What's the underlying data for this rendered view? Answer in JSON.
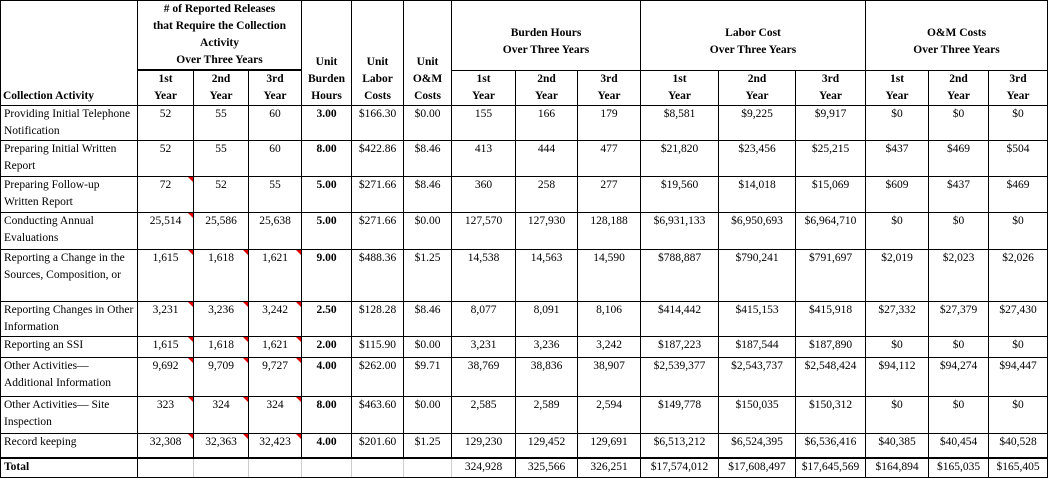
{
  "header": {
    "activity": "Collection Activity",
    "releases_group": "# of Reported Releases that Require the Collection Activity Over Three Years",
    "releases_group_lines": [
      "# of Reported Releases",
      "that Require the Collection",
      "Activity",
      "Over Three Years"
    ],
    "unit_burden": [
      "Unit",
      "Burden",
      "Hours"
    ],
    "unit_labor": [
      "Unit",
      "Labor",
      "Costs"
    ],
    "unit_om": [
      "Unit",
      "O&M",
      "Costs"
    ],
    "burden_group": [
      "Burden Hours",
      "Over Three Years"
    ],
    "labor_group": [
      "Labor Cost",
      "Over Three Years"
    ],
    "om_group": [
      "O&M Costs",
      "Over Three Years"
    ],
    "years": [
      [
        "1st",
        "Year"
      ],
      [
        "2nd",
        "Year"
      ],
      [
        "3rd",
        "Year"
      ]
    ]
  },
  "rows": [
    {
      "activity": "Providing Initial Telephone Notification",
      "releases": [
        "52",
        "55",
        "60"
      ],
      "flags": [
        0,
        0,
        0
      ],
      "unit_burden": "3.00",
      "unit_labor": "$166.30",
      "unit_om": "$0.00",
      "burden": [
        "155",
        "166",
        "179"
      ],
      "labor": [
        "$8,581",
        "$9,225",
        "$9,917"
      ],
      "om": [
        "$0",
        "$0",
        "$0"
      ]
    },
    {
      "activity": "Preparing Initial Written Report",
      "releases": [
        "52",
        "55",
        "60"
      ],
      "flags": [
        0,
        0,
        0
      ],
      "unit_burden": "8.00",
      "unit_labor": "$422.86",
      "unit_om": "$8.46",
      "burden": [
        "413",
        "444",
        "477"
      ],
      "labor": [
        "$21,820",
        "$23,456",
        "$25,215"
      ],
      "om": [
        "$437",
        "$469",
        "$504"
      ]
    },
    {
      "activity": "Preparing Follow-up Written Report",
      "releases": [
        "72",
        "52",
        "55"
      ],
      "flags": [
        1,
        0,
        0
      ],
      "unit_burden": "5.00",
      "unit_labor": "$271.66",
      "unit_om": "$8.46",
      "burden": [
        "360",
        "258",
        "277"
      ],
      "labor": [
        "$19,560",
        "$14,018",
        "$15,069"
      ],
      "om": [
        "$609",
        "$437",
        "$469"
      ]
    },
    {
      "activity": "Conducting Annual Evaluations",
      "releases": [
        "25,514",
        "25,586",
        "25,638"
      ],
      "flags": [
        1,
        0,
        0
      ],
      "unit_burden": "5.00",
      "unit_labor": "$271.66",
      "unit_om": "$0.00",
      "burden": [
        "127,570",
        "127,930",
        "128,188"
      ],
      "labor": [
        "$6,931,133",
        "$6,950,693",
        "$6,964,710"
      ],
      "om": [
        "$0",
        "$0",
        "$0"
      ]
    },
    {
      "activity": "Reporting a Change in the Sources, Composition, or",
      "releases": [
        "1,615",
        "1,618",
        "1,621"
      ],
      "flags": [
        1,
        1,
        1
      ],
      "unit_burden": "9.00",
      "unit_labor": "$488.36",
      "unit_om": "$1.25",
      "burden": [
        "14,538",
        "14,563",
        "14,590"
      ],
      "labor": [
        "$788,887",
        "$790,241",
        "$791,697"
      ],
      "om": [
        "$2,019",
        "$2,023",
        "$2,026"
      ]
    },
    {
      "activity": "Reporting Changes in Other Information",
      "releases": [
        "3,231",
        "3,236",
        "3,242"
      ],
      "flags": [
        1,
        1,
        1
      ],
      "unit_burden": "2.50",
      "unit_labor": "$128.28",
      "unit_om": "$8.46",
      "burden": [
        "8,077",
        "8,091",
        "8,106"
      ],
      "labor": [
        "$414,442",
        "$415,153",
        "$415,918"
      ],
      "om": [
        "$27,332",
        "$27,379",
        "$27,430"
      ]
    },
    {
      "activity": "Reporting an SSI",
      "releases": [
        "1,615",
        "1,618",
        "1,621"
      ],
      "flags": [
        1,
        1,
        1
      ],
      "unit_burden": "2.00",
      "unit_labor": "$115.90",
      "unit_om": "$0.00",
      "burden": [
        "3,231",
        "3,236",
        "3,242"
      ],
      "labor": [
        "$187,223",
        "$187,544",
        "$187,890"
      ],
      "om": [
        "$0",
        "$0",
        "$0"
      ]
    },
    {
      "activity": "Other Activities— Additional Information",
      "releases": [
        "9,692",
        "9,709",
        "9,727"
      ],
      "flags": [
        1,
        1,
        1
      ],
      "unit_burden": "4.00",
      "unit_labor": "$262.00",
      "unit_om": "$9.71",
      "burden": [
        "38,769",
        "38,836",
        "38,907"
      ],
      "labor": [
        "$2,539,377",
        "$2,543,737",
        "$2,548,424"
      ],
      "om": [
        "$94,112",
        "$94,274",
        "$94,447"
      ]
    },
    {
      "activity": "Other Activities— Site Inspection",
      "releases": [
        "323",
        "324",
        "324"
      ],
      "flags": [
        1,
        1,
        1
      ],
      "unit_burden": "8.00",
      "unit_labor": "$463.60",
      "unit_om": "$0.00",
      "burden": [
        "2,585",
        "2,589",
        "2,594"
      ],
      "labor": [
        "$149,778",
        "$150,035",
        "$150,312"
      ],
      "om": [
        "$0",
        "$0",
        "$0"
      ]
    },
    {
      "activity": "Record keeping",
      "releases": [
        "32,308",
        "32,363",
        "32,423"
      ],
      "flags": [
        1,
        1,
        1
      ],
      "unit_burden": "4.00",
      "unit_labor": "$201.60",
      "unit_om": "$1.25",
      "burden": [
        "129,230",
        "129,452",
        "129,691"
      ],
      "labor": [
        "$6,513,212",
        "$6,524,395",
        "$6,536,416"
      ],
      "om": [
        "$40,385",
        "$40,454",
        "$40,528"
      ]
    }
  ],
  "total": {
    "label": "Total",
    "burden": [
      "324,928",
      "325,566",
      "326,251"
    ],
    "labor": [
      "$17,574,012",
      "$17,608,497",
      "$17,645,569"
    ],
    "om": [
      "$164,894",
      "$165,035",
      "$165,405"
    ]
  }
}
